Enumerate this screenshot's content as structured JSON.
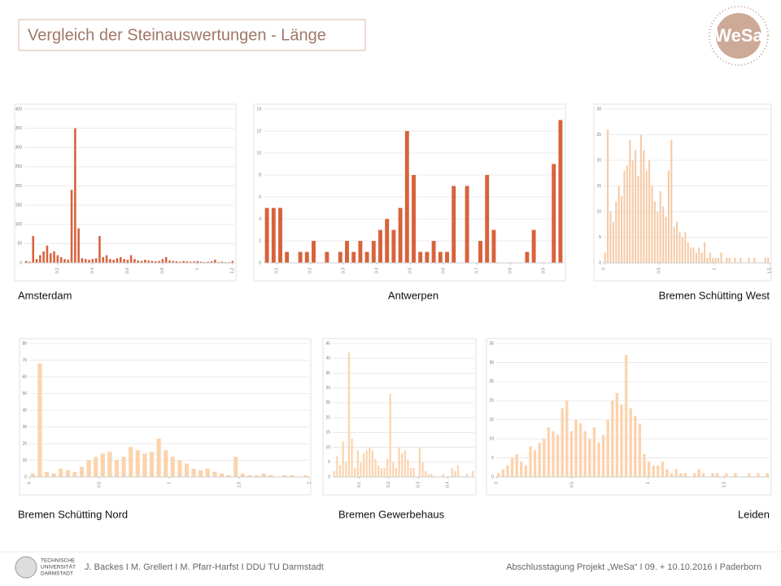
{
  "slide": {
    "title": "Vergleich der Steinauswertungen - Länge",
    "logo": "WeSa",
    "university": [
      "TECHNISCHE",
      "UNIVERSITÄT",
      "DARMSTADT"
    ],
    "footer_left": "J. Backes I M. Grellert I M. Pfarr-Harfst I DDU TU Darmstadt",
    "footer_right": "Abschlusstagung Projekt „WeSa“ I 09. + 10.10.2016 I Paderborn"
  },
  "chart_data": [
    {
      "type": "histogram",
      "title": "Amsterdam",
      "color": "#d9623b",
      "grid": true,
      "bins": [
        0.01,
        0.03,
        0.05,
        0.07,
        0.09,
        0.11,
        0.13,
        0.15,
        0.17,
        0.19,
        0.21,
        0.23,
        0.25,
        0.27,
        0.29,
        0.31,
        0.33,
        0.35,
        0.37,
        0.39,
        0.41,
        0.43,
        0.45,
        0.47,
        0.49,
        0.51,
        0.53,
        0.55,
        0.57,
        0.59,
        0.61,
        0.63,
        0.65,
        0.67,
        0.69,
        0.71,
        0.73,
        0.75,
        0.77,
        0.79,
        0.81,
        0.83,
        0.85,
        0.87,
        0.89,
        0.91,
        0.93,
        0.95,
        0.97,
        0.99,
        1.01,
        1.03,
        1.05,
        1.07,
        1.09,
        1.11,
        1.13,
        1.15,
        1.17,
        1.19,
        1.21
      ],
      "values": [
        5,
        3,
        70,
        10,
        20,
        30,
        45,
        25,
        30,
        20,
        15,
        10,
        8,
        190,
        350,
        90,
        12,
        10,
        8,
        10,
        12,
        70,
        15,
        20,
        10,
        8,
        12,
        15,
        10,
        8,
        20,
        10,
        6,
        5,
        8,
        6,
        5,
        4,
        5,
        10,
        15,
        6,
        5,
        4,
        3,
        5,
        4,
        3,
        4,
        5,
        3,
        2,
        3,
        4,
        8,
        2,
        3,
        2,
        2,
        5
      ],
      "xlim": [
        0.01,
        1.21
      ],
      "xticks": [
        0.2,
        0.4,
        0.6,
        0.8,
        1,
        1.2
      ],
      "ylim": [
        0,
        400
      ],
      "yticks": [
        0,
        50,
        100,
        150,
        200,
        250,
        300,
        350,
        400
      ]
    },
    {
      "type": "histogram",
      "title": "Antwerpen",
      "color": "#d9623b",
      "grid": true,
      "bins": [
        0.06,
        0.08,
        0.1,
        0.12,
        0.14,
        0.16,
        0.18,
        0.2,
        0.22,
        0.24,
        0.26,
        0.28,
        0.3,
        0.32,
        0.34,
        0.36,
        0.38,
        0.4,
        0.42,
        0.44,
        0.46,
        0.48,
        0.5,
        0.52,
        0.54,
        0.56,
        0.58,
        0.6,
        0.62,
        0.64,
        0.66,
        0.68,
        0.7,
        0.72,
        0.74,
        0.76,
        0.78,
        0.8,
        0.82,
        0.84,
        0.86,
        0.88,
        0.9,
        0.92,
        0.94,
        0.96
      ],
      "values": [
        5,
        5,
        5,
        1,
        0,
        1,
        1,
        2,
        0,
        1,
        0,
        1,
        2,
        1,
        2,
        1,
        2,
        3,
        4,
        3,
        5,
        12,
        8,
        1,
        1,
        2,
        1,
        1,
        7,
        0,
        7,
        0,
        2,
        8,
        3,
        0,
        0,
        0,
        0,
        1,
        3,
        0,
        0,
        9,
        13
      ],
      "xlim": [
        0.06,
        0.96
      ],
      "xticks": [
        0.1,
        0.2,
        0.3,
        0.4,
        0.5,
        0.6,
        0.7,
        0.8,
        0.9
      ],
      "ylim": [
        0,
        14
      ],
      "yticks": [
        0,
        2,
        4,
        6,
        8,
        10,
        12,
        14
      ]
    },
    {
      "type": "histogram",
      "title": "Bremen Schütting West",
      "color": "#f6c9a5",
      "grid": true,
      "bins": [
        0,
        0.025,
        0.05,
        0.075,
        0.1,
        0.125,
        0.15,
        0.175,
        0.2,
        0.225,
        0.25,
        0.275,
        0.3,
        0.325,
        0.35,
        0.375,
        0.4,
        0.425,
        0.45,
        0.475,
        0.5,
        0.525,
        0.55,
        0.575,
        0.6,
        0.625,
        0.65,
        0.675,
        0.7,
        0.725,
        0.75,
        0.775,
        0.8,
        0.825,
        0.85,
        0.875,
        0.9,
        0.925,
        0.95,
        0.975,
        1,
        1.025,
        1.05,
        1.075,
        1.1,
        1.125,
        1.15,
        1.175,
        1.2,
        1.225,
        1.25,
        1.275,
        1.3,
        1.325,
        1.35,
        1.375,
        1.4,
        1.425,
        1.45,
        1.475,
        1.5
      ],
      "values": [
        2,
        26,
        10,
        8,
        12,
        15,
        13,
        18,
        19,
        24,
        20,
        22,
        17,
        25,
        22,
        18,
        20,
        15,
        12,
        10,
        14,
        11,
        9,
        18,
        24,
        7,
        8,
        6,
        5,
        6,
        4,
        3,
        3,
        2,
        3,
        2,
        4,
        1,
        2,
        1,
        1,
        1,
        2,
        0,
        1,
        1,
        0,
        1,
        0,
        1,
        0,
        0,
        1,
        0,
        1,
        0,
        0,
        0,
        1,
        1
      ],
      "xlim": [
        0,
        1.5
      ],
      "xticks": [
        0,
        0.5,
        1,
        1.5
      ],
      "ylim": [
        0,
        30
      ],
      "yticks": [
        0,
        5,
        10,
        15,
        20,
        25,
        30
      ]
    },
    {
      "type": "histogram",
      "title": "Bremen Schütting Nord",
      "color": "#fbd3ad",
      "grid": true,
      "bins": [
        0,
        0.05,
        0.1,
        0.15,
        0.2,
        0.25,
        0.3,
        0.35,
        0.4,
        0.45,
        0.5,
        0.55,
        0.6,
        0.65,
        0.7,
        0.75,
        0.8,
        0.85,
        0.9,
        0.95,
        1,
        1.05,
        1.1,
        1.15,
        1.2,
        1.25,
        1.3,
        1.35,
        1.4,
        1.45,
        1.5,
        1.55,
        1.6,
        1.65,
        1.7,
        1.75,
        1.8,
        1.85,
        1.9,
        1.95,
        2
      ],
      "values": [
        2,
        68,
        3,
        2,
        5,
        4,
        3,
        6,
        10,
        12,
        14,
        15,
        10,
        12,
        18,
        16,
        14,
        15,
        23,
        16,
        12,
        10,
        8,
        5,
        4,
        5,
        3,
        2,
        1,
        12,
        2,
        1,
        1,
        2,
        1,
        0,
        1,
        1,
        0,
        1
      ],
      "xlim": [
        0,
        2
      ],
      "xticks": [
        0,
        0.5,
        1,
        1.5,
        2
      ],
      "ylim": [
        0,
        80
      ],
      "yticks": [
        0,
        10,
        20,
        30,
        40,
        50,
        60,
        70,
        80
      ]
    },
    {
      "type": "histogram",
      "title": "Bremen Gewerbehaus",
      "color": "#fbd3ad",
      "grid": true,
      "bins": [
        0.01,
        0.02,
        0.03,
        0.04,
        0.05,
        0.06,
        0.07,
        0.08,
        0.09,
        0.1,
        0.11,
        0.12,
        0.13,
        0.14,
        0.15,
        0.16,
        0.17,
        0.18,
        0.19,
        0.2,
        0.21,
        0.22,
        0.23,
        0.24,
        0.25,
        0.26,
        0.27,
        0.28,
        0.29,
        0.3,
        0.31,
        0.32,
        0.33,
        0.34,
        0.35,
        0.36,
        0.37,
        0.38,
        0.39,
        0.4,
        0.41,
        0.42,
        0.43,
        0.44,
        0.45,
        0.46,
        0.47,
        0.48,
        0.49
      ],
      "values": [
        2,
        7,
        4,
        12,
        5,
        42,
        13,
        3,
        9,
        5,
        8,
        9,
        10,
        9,
        6,
        4,
        3,
        3,
        6,
        28,
        5,
        3,
        10,
        8,
        9,
        6,
        3,
        3,
        0,
        10,
        5,
        2,
        1,
        1,
        0,
        0,
        0,
        1,
        0,
        0,
        3,
        2,
        4,
        0,
        0,
        1,
        0,
        2
      ],
      "xlim": [
        0.01,
        0.49
      ],
      "xticks": [
        0.1,
        0.2,
        0.3,
        0.4
      ],
      "ylim": [
        0,
        45
      ],
      "yticks": [
        0,
        5,
        10,
        15,
        20,
        25,
        30,
        35,
        40,
        45
      ]
    },
    {
      "type": "histogram",
      "title": "Leiden",
      "color": "#fbd3ad",
      "grid": true,
      "bins": [
        0,
        0.03,
        0.06,
        0.09,
        0.12,
        0.15,
        0.18,
        0.21,
        0.24,
        0.27,
        0.3,
        0.33,
        0.36,
        0.39,
        0.42,
        0.45,
        0.48,
        0.51,
        0.54,
        0.57,
        0.6,
        0.63,
        0.66,
        0.69,
        0.72,
        0.75,
        0.78,
        0.81,
        0.84,
        0.87,
        0.9,
        0.93,
        0.96,
        0.99,
        1.02,
        1.05,
        1.08,
        1.11,
        1.14,
        1.17,
        1.2,
        1.23,
        1.26,
        1.29,
        1.32,
        1.35,
        1.38,
        1.41,
        1.44,
        1.47,
        1.5,
        1.53,
        1.56,
        1.59,
        1.62,
        1.65,
        1.68,
        1.71,
        1.74,
        1.77,
        1.8
      ],
      "values": [
        1,
        2,
        3,
        5,
        6,
        4,
        3,
        8,
        7,
        9,
        10,
        13,
        12,
        11,
        18,
        20,
        12,
        15,
        14,
        12,
        10,
        13,
        9,
        11,
        15,
        20,
        22,
        19,
        32,
        18,
        16,
        14,
        6,
        4,
        3,
        3,
        4,
        2,
        1,
        2,
        1,
        1,
        0,
        1,
        2,
        1,
        0,
        1,
        1,
        0,
        1,
        0,
        1,
        0,
        0,
        1,
        0,
        1,
        0,
        1
      ],
      "xlim": [
        0,
        1.8
      ],
      "xticks": [
        0,
        0.5,
        1,
        1.5
      ],
      "ylim": [
        0,
        35
      ],
      "yticks": [
        0,
        5,
        10,
        15,
        20,
        25,
        30,
        35
      ]
    }
  ]
}
